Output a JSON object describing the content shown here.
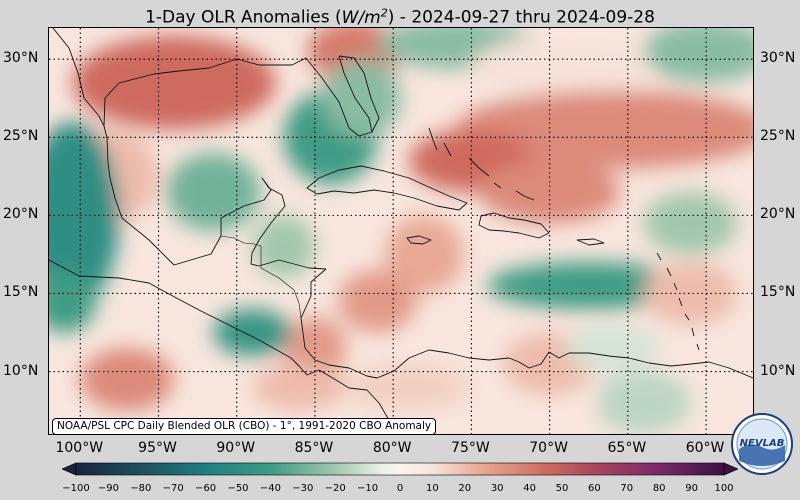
{
  "title": {
    "prefix": "1-Day OLR Anomalies (",
    "unit_base": "W/m",
    "unit_exp": "2",
    "suffix": ") - 2024-09-27 thru 2024-09-28"
  },
  "map": {
    "projection": "equirectangular",
    "extent": {
      "lon_min": -102,
      "lon_max": -57,
      "lat_min": 6,
      "lat_max": 32
    },
    "latitude_labels": [
      {
        "value": 30,
        "text": "30°N"
      },
      {
        "value": 25,
        "text": "25°N"
      },
      {
        "value": 20,
        "text": "20°N"
      },
      {
        "value": 15,
        "text": "15°N"
      },
      {
        "value": 10,
        "text": "10°N"
      }
    ],
    "longitude_labels": [
      {
        "value": -100,
        "text": "100°W"
      },
      {
        "value": -95,
        "text": "95°W"
      },
      {
        "value": -90,
        "text": "90°W"
      },
      {
        "value": -85,
        "text": "85°W"
      },
      {
        "value": -80,
        "text": "80°W"
      },
      {
        "value": -75,
        "text": "75°W"
      },
      {
        "value": -70,
        "text": "70°W"
      },
      {
        "value": -65,
        "text": "65°W"
      },
      {
        "value": -60,
        "text": "60°W"
      }
    ],
    "gridlines": "dotted",
    "anomaly_regions": [
      {
        "lon": -94,
        "lat": 28.5,
        "rlon": 6.5,
        "rlat": 3.0,
        "value": 45
      },
      {
        "lon": -82.5,
        "lat": 30.5,
        "rlon": 3.0,
        "rlat": 2.0,
        "value": 40
      },
      {
        "lon": -98,
        "lat": 22.5,
        "rlon": 3.0,
        "rlat": 3.0,
        "value": 20
      },
      {
        "lon": -100.5,
        "lat": 20,
        "rlon": 3.0,
        "rlat": 6.0,
        "value": -50
      },
      {
        "lon": -91.5,
        "lat": 21.5,
        "rlon": 3.0,
        "rlat": 2.5,
        "value": -30
      },
      {
        "lon": -84,
        "lat": 25,
        "rlon": 3.0,
        "rlat": 3.0,
        "value": -40
      },
      {
        "lon": -82,
        "lat": 27.5,
        "rlon": 2.5,
        "rlat": 2.5,
        "value": -25
      },
      {
        "lon": -76,
        "lat": 31,
        "rlon": 5.0,
        "rlat": 1.6,
        "value": -25
      },
      {
        "lon": -69,
        "lat": 29.5,
        "rlon": 6.0,
        "rlat": 2.0,
        "value": 10
      },
      {
        "lon": -60,
        "lat": 30.5,
        "rlon": 4.0,
        "rlat": 2.0,
        "value": -25
      },
      {
        "lon": -66,
        "lat": 25.5,
        "rlon": 10.0,
        "rlat": 2.5,
        "value": 35
      },
      {
        "lon": -75,
        "lat": 23.5,
        "rlon": 4.0,
        "rlat": 2.0,
        "value": 45
      },
      {
        "lon": -70,
        "lat": 21.5,
        "rlon": 4.5,
        "rlat": 2.0,
        "value": 35
      },
      {
        "lon": -78,
        "lat": 17.5,
        "rlon": 2.5,
        "rlat": 2.5,
        "value": 25
      },
      {
        "lon": -81,
        "lat": 14.5,
        "rlon": 2.5,
        "rlat": 2.0,
        "value": 30
      },
      {
        "lon": -85,
        "lat": 11.5,
        "rlon": 2.0,
        "rlat": 2.0,
        "value": 30
      },
      {
        "lon": -67.5,
        "lat": 15.5,
        "rlon": 6.5,
        "rlat": 1.5,
        "value": -40
      },
      {
        "lon": -61,
        "lat": 19.5,
        "rlon": 3.0,
        "rlat": 2.0,
        "value": -20
      },
      {
        "lon": -61,
        "lat": 15,
        "rlon": 3.0,
        "rlat": 2.0,
        "value": 20
      },
      {
        "lon": -89,
        "lat": 12.5,
        "rlon": 2.5,
        "rlat": 1.5,
        "value": -45
      },
      {
        "lon": -101,
        "lat": 14.5,
        "rlon": 2.0,
        "rlat": 2.0,
        "value": -40
      },
      {
        "lon": -97,
        "lat": 9.5,
        "rlon": 3.0,
        "rlat": 2.0,
        "value": 35
      },
      {
        "lon": -86,
        "lat": 9,
        "rlon": 3.0,
        "rlat": 1.5,
        "value": 20
      },
      {
        "lon": -79,
        "lat": 9,
        "rlon": 4.0,
        "rlat": 1.5,
        "value": 15
      },
      {
        "lon": -70,
        "lat": 10.5,
        "rlon": 3.0,
        "rlat": 2.0,
        "value": 20
      },
      {
        "lon": -64,
        "lat": 8,
        "rlon": 3.0,
        "rlat": 2.0,
        "value": -15
      },
      {
        "lon": -66,
        "lat": 11.5,
        "rlon": 3.0,
        "rlat": 1.5,
        "value": -10
      },
      {
        "lon": -87,
        "lat": 18,
        "rlon": 2.0,
        "rlat": 2.0,
        "value": -20
      }
    ],
    "background_value": 8
  },
  "credit": "NOAA/PSL CPC Daily Blended OLR (CBO) - 1°, 1991-2020 CBO Anomaly",
  "logo": {
    "text": "NEVLAB",
    "icon": "noaa-psl-logo"
  },
  "colorbar": {
    "min": -100,
    "max": 100,
    "extend": "both",
    "ticks": [
      "−100",
      "−90",
      "−80",
      "−70",
      "−60",
      "−50",
      "−40",
      "−30",
      "−20",
      "−10",
      "0",
      "10",
      "20",
      "30",
      "40",
      "50",
      "60",
      "70",
      "80",
      "90",
      "100"
    ],
    "stops": [
      {
        "v": -100,
        "c": "#1a2340"
      },
      {
        "v": -80,
        "c": "#1e4f5e"
      },
      {
        "v": -60,
        "c": "#1f7f80"
      },
      {
        "v": -40,
        "c": "#3f9c85"
      },
      {
        "v": -20,
        "c": "#a3c7ae"
      },
      {
        "v": -5,
        "c": "#eef2ec"
      },
      {
        "v": 0,
        "c": "#fbf4f0"
      },
      {
        "v": 10,
        "c": "#f7e3da"
      },
      {
        "v": 25,
        "c": "#e8a995"
      },
      {
        "v": 45,
        "c": "#cf6b5f"
      },
      {
        "v": 60,
        "c": "#a94660"
      },
      {
        "v": 80,
        "c": "#7a2a6a"
      },
      {
        "v": 100,
        "c": "#3b1240"
      }
    ]
  }
}
